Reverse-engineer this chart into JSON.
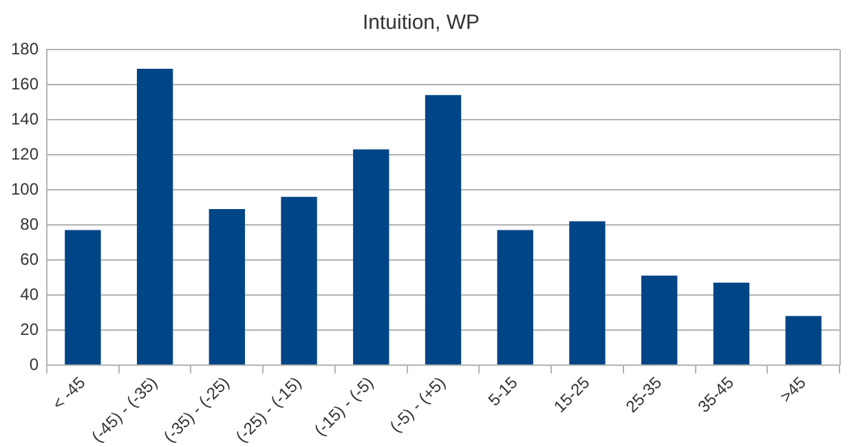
{
  "chart_data": {
    "type": "bar",
    "title": "Intuition, WP",
    "categories": [
      "< -45",
      "(-45) - (-35)",
      "(-35) - (-25)",
      "(-25) - (-15)",
      "(-15) - (-5)",
      "(-5) - (+5)",
      "5-15",
      "15-25",
      "25-35",
      "35-45",
      ">45"
    ],
    "values": [
      77,
      169,
      89,
      96,
      123,
      154,
      77,
      82,
      51,
      47,
      28
    ],
    "color": "#004586",
    "ylim": [
      0,
      180
    ],
    "yticks": [
      0,
      20,
      40,
      60,
      80,
      100,
      120,
      140,
      160,
      180
    ],
    "grid": "y",
    "legend": false
  }
}
